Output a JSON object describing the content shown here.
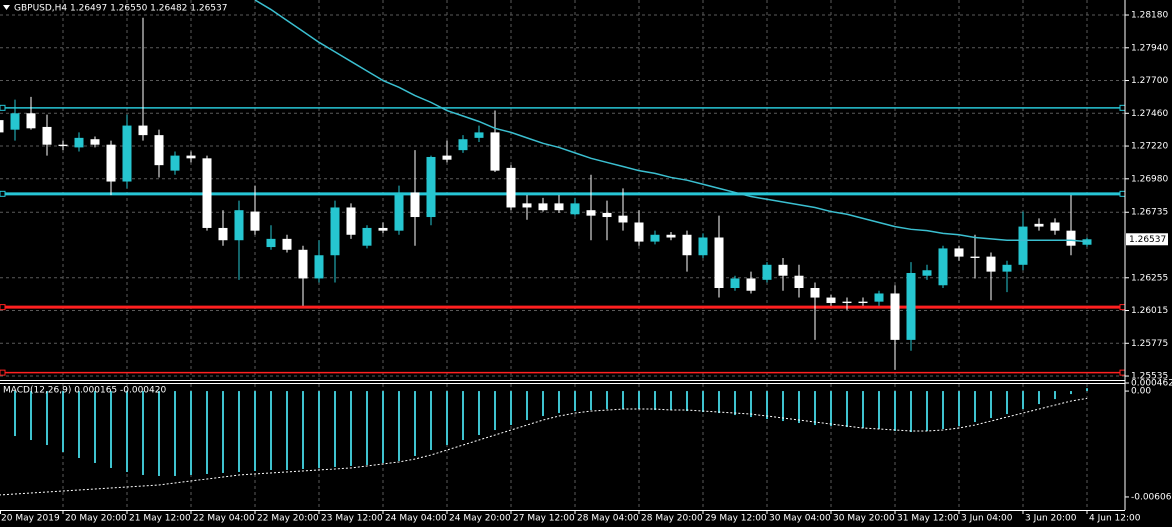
{
  "chart_data": [
    {
      "type": "candlestick",
      "header": "GBPUSD,H4  1.26497 1.26550 1.26482 1.26537",
      "categories": [
        "20 May 2019",
        null,
        null,
        null,
        "20 May 20:00",
        null,
        null,
        null,
        "21 May 12:00",
        null,
        null,
        null,
        "22 May 04:00",
        null,
        null,
        null,
        "22 May 20:00",
        null,
        null,
        null,
        "23 May 12:00",
        null,
        null,
        null,
        "24 May 04:00",
        null,
        null,
        null,
        "24 May 20:00",
        null,
        null,
        null,
        "27 May 12:00",
        null,
        null,
        null,
        "28 May 04:00",
        null,
        null,
        null,
        "28 May 20:00",
        null,
        null,
        null,
        "29 May 12:00",
        null,
        null,
        null,
        "30 May 04:00",
        null,
        null,
        null,
        "30 May 20:00",
        null,
        null,
        null,
        "31 May 12:00",
        null,
        null,
        null,
        "3 Jun 04:00",
        null,
        null,
        null,
        "3 Jun 20:00",
        null,
        null,
        null,
        "4 Jun 12:00"
      ],
      "open": [
        1.2741,
        1.2734,
        1.2746,
        1.2736,
        1.2723,
        1.2721,
        1.2727,
        1.2723,
        1.2696,
        1.2737,
        1.273,
        1.2704,
        1.2715,
        1.2713,
        1.2662,
        1.2653,
        1.2674,
        1.2648,
        1.2654,
        1.2646,
        1.2625,
        1.2642,
        1.2677,
        1.2649,
        1.2662,
        1.266,
        1.2688,
        1.267,
        1.2715,
        1.2719,
        1.2728,
        1.2732,
        1.2706,
        1.268,
        1.268,
        1.268,
        1.2672,
        1.2675,
        1.2673,
        1.2671,
        1.2666,
        1.2652,
        1.2657,
        1.2657,
        1.2642,
        1.2655,
        1.2618,
        1.2625,
        1.2624,
        1.2635,
        1.2627,
        1.2618,
        1.2611,
        1.2608,
        1.2608,
        1.2608,
        1.2614,
        1.258,
        1.2627,
        1.262,
        1.2647,
        1.2641,
        1.2641,
        1.263,
        1.2635,
        1.2665,
        1.2666,
        1.266,
        1.26497
      ],
      "high": [
        1.2752,
        1.2756,
        1.2758,
        1.2745,
        1.2726,
        1.2732,
        1.2729,
        1.2726,
        1.2745,
        1.2816,
        1.2734,
        1.2718,
        1.2718,
        1.2715,
        1.2675,
        1.2682,
        1.2693,
        1.2664,
        1.2657,
        1.2649,
        1.2653,
        1.2682,
        1.268,
        1.2664,
        1.2666,
        1.2693,
        1.2719,
        1.2715,
        1.2726,
        1.273,
        1.2737,
        1.2748,
        1.2708,
        1.2686,
        1.2684,
        1.2686,
        1.2684,
        1.2701,
        1.2682,
        1.2691,
        1.2675,
        1.266,
        1.2659,
        1.266,
        1.2658,
        1.2671,
        1.2627,
        1.263,
        1.2637,
        1.264,
        1.2635,
        1.2622,
        1.2613,
        1.2611,
        1.2611,
        1.2616,
        1.262,
        1.2637,
        1.2635,
        1.2649,
        1.2649,
        1.2657,
        1.2644,
        1.2638,
        1.2674,
        1.2669,
        1.2669,
        1.2686,
        1.2655
      ],
      "low": [
        1.2726,
        1.2726,
        1.2734,
        1.2715,
        1.2719,
        1.2718,
        1.2721,
        1.2686,
        1.2691,
        1.2726,
        1.2699,
        1.2701,
        1.271,
        1.266,
        1.2649,
        1.2624,
        1.2657,
        1.2646,
        1.2644,
        1.2605,
        1.2622,
        1.2622,
        1.2654,
        1.2647,
        1.2658,
        1.2657,
        1.2649,
        1.2664,
        1.271,
        1.2717,
        1.2725,
        1.2703,
        1.2675,
        1.2668,
        1.2674,
        1.2673,
        1.2671,
        1.2653,
        1.2653,
        1.266,
        1.2649,
        1.265,
        1.2653,
        1.263,
        1.264,
        1.2611,
        1.2616,
        1.2614,
        1.2622,
        1.2616,
        1.2611,
        1.258,
        1.2605,
        1.2602,
        1.2605,
        1.2605,
        1.2558,
        1.2572,
        1.2624,
        1.2618,
        1.2638,
        1.2625,
        1.2609,
        1.2615,
        1.2631,
        1.266,
        1.2657,
        1.2642,
        1.26482
      ],
      "close": [
        1.2732,
        1.2746,
        1.2735,
        1.2723,
        1.2722,
        1.2728,
        1.2723,
        1.2696,
        1.2737,
        1.273,
        1.2708,
        1.2715,
        1.2713,
        1.2662,
        1.2653,
        1.2675,
        1.266,
        1.2654,
        1.2646,
        1.2625,
        1.2642,
        1.2677,
        1.2657,
        1.2662,
        1.266,
        1.2688,
        1.267,
        1.2714,
        1.2712,
        1.2727,
        1.2732,
        1.2704,
        1.2677,
        1.2677,
        1.2675,
        1.2675,
        1.268,
        1.2671,
        1.267,
        1.2666,
        1.2652,
        1.2657,
        1.2655,
        1.2642,
        1.2655,
        1.2618,
        1.2625,
        1.2616,
        1.2635,
        1.2627,
        1.2618,
        1.2611,
        1.2607,
        1.2607,
        1.2607,
        1.2614,
        1.258,
        1.2629,
        1.2631,
        1.2647,
        1.2641,
        1.264,
        1.263,
        1.2635,
        1.2663,
        1.2663,
        1.266,
        1.2649,
        1.26537
      ],
      "up_color": "#26c6d0",
      "down_color": "#ffffff",
      "ma": {
        "color": "#3bbfd0",
        "values": [
          null,
          null,
          null,
          null,
          null,
          null,
          null,
          null,
          null,
          null,
          null,
          null,
          null,
          null,
          null,
          null,
          1.2829,
          1.2822,
          1.2814,
          1.2806,
          1.2798,
          1.2791,
          1.2784,
          1.2777,
          1.277,
          1.2765,
          1.2759,
          1.2754,
          1.2748,
          1.2744,
          1.274,
          1.2735,
          1.2732,
          1.2728,
          1.2724,
          1.2721,
          1.2717,
          1.2713,
          1.271,
          1.2707,
          1.2704,
          1.2702,
          1.2699,
          1.2697,
          1.2694,
          1.2691,
          1.2688,
          1.2685,
          1.2683,
          1.2681,
          1.2679,
          1.2677,
          1.2674,
          1.2672,
          1.2669,
          1.2666,
          1.2663,
          1.2661,
          1.266,
          1.2658,
          1.2657,
          1.2655,
          1.2654,
          1.2653,
          1.2653,
          1.2653,
          1.2653,
          1.2653,
          1.2652
        ]
      },
      "levels": [
        {
          "value": 1.275,
          "color": "#27c6d6",
          "width": 1.5
        },
        {
          "value": 1.2687,
          "color": "#27c6d6",
          "width": 3
        },
        {
          "value": 1.2604,
          "color": "#ff2020",
          "width": 3
        },
        {
          "value": 1.2556,
          "color": "#ff2020",
          "width": 1.5
        }
      ],
      "ylim": [
        1.25506,
        1.2829
      ],
      "yticks": [
        {
          "value": 1.2818,
          "label": "1.28180"
        },
        {
          "value": 1.2794,
          "label": "1.27940"
        },
        {
          "value": 1.277,
          "label": "1.27700"
        },
        {
          "value": 1.2746,
          "label": "1.27460"
        },
        {
          "value": 1.2722,
          "label": "1.27220"
        },
        {
          "value": 1.2698,
          "label": "1.26980"
        },
        1.26735,
        1.26255,
        1.26015,
        1.25775,
        1.25535
      ],
      "price_label": {
        "value": 1.26537,
        "label": "1.26537"
      },
      "grid": true
    },
    {
      "type": "bar",
      "header": "MACD(12,26,9) 0.000165 -0.000420",
      "color": "#3fc3cf",
      "values": [
        -0.002345,
        -0.002574,
        -0.002803,
        -0.003089,
        -0.003489,
        -0.003832,
        -0.004118,
        -0.004404,
        -0.004633,
        -0.004805,
        -0.004862,
        -0.004862,
        -0.004805,
        -0.004748,
        -0.00469,
        -0.004633,
        -0.004576,
        -0.004519,
        -0.004519,
        -0.004462,
        -0.004404,
        -0.004347,
        -0.00429,
        -0.004233,
        -0.004118,
        -0.004004,
        -0.003718,
        -0.003375,
        -0.003089,
        -0.002803,
        -0.002517,
        -0.002231,
        -0.001945,
        -0.001659,
        -0.00143,
        -0.001258,
        -0.001144,
        -0.001087,
        -0.00103,
        -0.00103,
        -0.00103,
        -0.001087,
        -0.001087,
        -0.001144,
        -0.001201,
        -0.001258,
        -0.001373,
        -0.001487,
        -0.001602,
        -0.001716,
        -0.00183,
        -0.001945,
        -0.002002,
        -0.002059,
        -0.002116,
        -0.002174,
        -0.002288,
        -0.002345,
        -0.002288,
        -0.002174,
        -0.002002,
        -0.001773,
        -0.001544,
        -0.001316,
        -0.00103,
        -0.000744,
        -0.000458,
        -0.000172,
        0.000165
      ],
      "signal": {
        "color": "#ffffff",
        "values": [
          -0.005949,
          -0.005892,
          -0.005834,
          -0.005777,
          -0.00572,
          -0.005663,
          -0.005606,
          -0.005548,
          -0.005491,
          -0.005434,
          -0.005377,
          -0.005262,
          -0.005148,
          -0.005034,
          -0.004919,
          -0.004805,
          -0.004748,
          -0.00469,
          -0.004633,
          -0.004576,
          -0.004519,
          -0.004462,
          -0.004404,
          -0.00429,
          -0.004176,
          -0.004061,
          -0.00389,
          -0.003661,
          -0.003375,
          -0.003089,
          -0.002803,
          -0.002517,
          -0.002231,
          -0.001945,
          -0.001659,
          -0.00143,
          -0.001258,
          -0.001144,
          -0.001087,
          -0.00103,
          -0.00103,
          -0.00103,
          -0.001087,
          -0.001087,
          -0.001144,
          -0.001201,
          -0.001258,
          -0.001316,
          -0.00143,
          -0.001544,
          -0.001659,
          -0.001773,
          -0.001888,
          -0.002002,
          -0.002116,
          -0.002174,
          -0.002231,
          -0.002288,
          -0.002288,
          -0.002231,
          -0.002116,
          -0.001945,
          -0.001716,
          -0.001487,
          -0.001258,
          -0.00103,
          -0.000801,
          -0.000572,
          -0.00042
        ]
      },
      "ylim": [
        -0.00681,
        0.000462
      ],
      "yticks": [
        0.000462,
        {
          "value": 0,
          "label": "0.00"
        },
        -0.006063
      ]
    }
  ]
}
